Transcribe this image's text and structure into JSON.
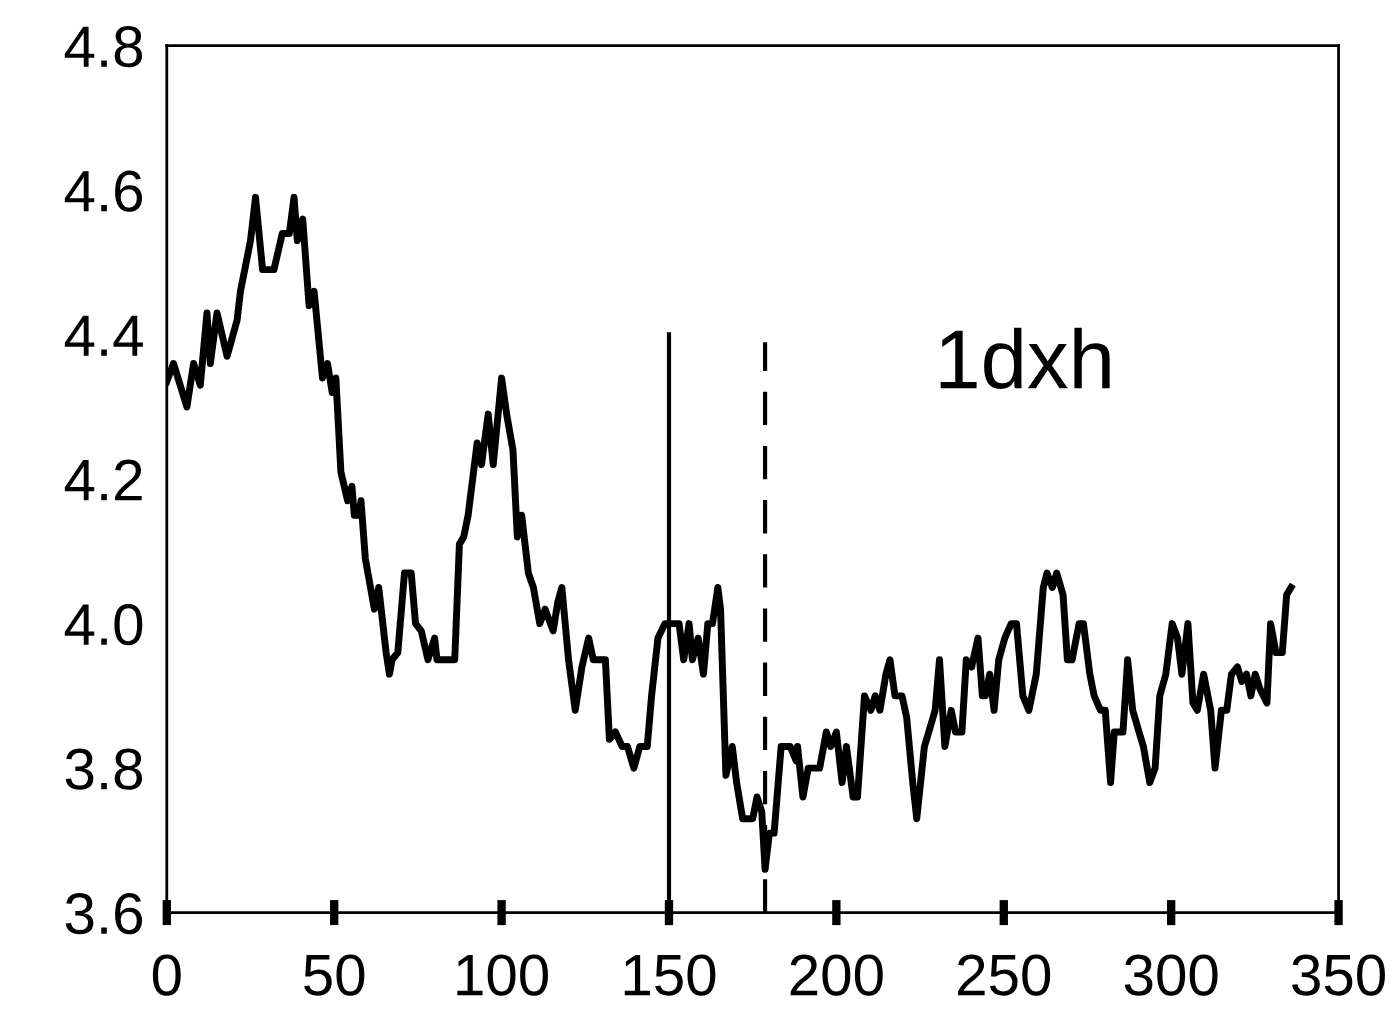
{
  "chart_data": {
    "type": "line",
    "annotations": [
      "1dxh"
    ],
    "x": [
      0,
      2,
      6,
      8,
      10,
      12,
      13,
      15,
      18,
      21,
      22,
      25,
      26.5,
      28.6,
      32,
      34.5,
      36.6,
      38,
      39,
      40.6,
      42.5,
      44,
      46.5,
      48,
      49.4,
      50.5,
      52,
      54,
      55.3,
      56,
      57.4,
      58,
      59.3,
      62,
      63.3,
      65.5,
      66.5,
      67.3,
      69,
      71,
      73,
      74.3,
      76,
      78,
      80,
      80.7,
      86,
      87.4,
      88.7,
      90,
      92.7,
      94,
      96,
      97.5,
      100,
      101.5,
      103.4,
      104.7,
      106,
      108,
      109.5,
      111.4,
      113,
      115.4,
      116.8,
      118,
      120,
      122,
      124,
      126,
      127.4,
      131,
      132.2,
      134,
      136,
      137.6,
      139.5,
      141.3,
      143.5,
      144.8,
      146.7,
      148.8,
      153,
      154.4,
      156,
      157,
      158.7,
      160.3,
      161.6,
      163,
      164.6,
      165.4,
      167,
      168.9,
      170.2,
      172,
      175,
      176.3,
      177.7,
      178.7,
      180,
      181.4,
      183.5,
      186.2,
      188,
      188.4,
      190,
      191.6,
      195,
      197,
      198.3,
      200,
      201.7,
      203,
      205,
      206.3,
      208.4,
      210.3,
      211.6,
      213,
      214.8,
      216,
      217.5,
      219.6,
      221,
      222.8,
      224,
      226.3,
      227.6,
      229.5,
      230.8,
      232.4,
      234.3,
      235.6,
      237.5,
      238.8,
      240.4,
      242.3,
      243.6,
      244.5,
      245.8,
      247.1,
      248.5,
      250.3,
      252.2,
      253.8,
      255.7,
      257.5,
      259.7,
      261.8,
      262.9,
      264.5,
      265.8,
      267.7,
      269,
      270.4,
      272.5,
      273.8,
      275.7,
      277,
      278.9,
      280.3,
      281.9,
      283,
      285.6,
      287,
      288.5,
      290.4,
      291.7,
      293.6,
      295.2,
      296.6,
      298.4,
      300.3,
      301.9,
      303.2,
      305,
      306.5,
      307.8,
      309.7,
      311.8,
      313.1,
      315,
      316.6,
      318,
      319.8,
      321.1,
      322.5,
      323.8,
      325.1,
      326.5,
      328.6,
      329.7,
      331.3,
      333.2,
      334.5,
      335.8
    ],
    "series": [
      {
        "color": "#000000",
        "values": [
          4.335,
          4.36,
          4.3,
          4.36,
          4.33,
          4.43,
          4.36,
          4.43,
          4.37,
          4.42,
          4.46,
          4.53,
          4.59,
          4.49,
          4.49,
          4.54,
          4.54,
          4.59,
          4.53,
          4.56,
          4.44,
          4.46,
          4.34,
          4.36,
          4.32,
          4.34,
          4.21,
          4.17,
          4.19,
          4.15,
          4.15,
          4.17,
          4.09,
          4.02,
          4.05,
          3.96,
          3.93,
          3.95,
          3.96,
          4.07,
          4.07,
          4.0,
          3.99,
          3.95,
          3.98,
          3.95,
          3.95,
          4.11,
          4.12,
          4.15,
          4.25,
          4.22,
          4.29,
          4.22,
          4.34,
          4.29,
          4.24,
          4.12,
          4.15,
          4.07,
          4.05,
          4.0,
          4.02,
          3.99,
          4.03,
          4.05,
          3.95,
          3.88,
          3.94,
          3.98,
          3.95,
          3.95,
          3.84,
          3.85,
          3.83,
          3.83,
          3.8,
          3.83,
          3.83,
          3.9,
          3.98,
          4.0,
          4.0,
          3.95,
          4.0,
          3.95,
          3.98,
          3.93,
          4.0,
          4.0,
          4.05,
          4.02,
          3.79,
          3.83,
          3.78,
          3.73,
          3.73,
          3.76,
          3.74,
          3.66,
          3.71,
          3.71,
          3.83,
          3.83,
          3.81,
          3.83,
          3.76,
          3.8,
          3.8,
          3.85,
          3.83,
          3.85,
          3.78,
          3.83,
          3.76,
          3.76,
          3.9,
          3.88,
          3.9,
          3.88,
          3.93,
          3.95,
          3.9,
          3.9,
          3.87,
          3.78,
          3.73,
          3.83,
          3.85,
          3.88,
          3.95,
          3.83,
          3.88,
          3.85,
          3.85,
          3.95,
          3.94,
          3.98,
          3.9,
          3.9,
          3.93,
          3.88,
          3.95,
          3.98,
          4.0,
          4.0,
          3.9,
          3.88,
          3.93,
          4.05,
          4.07,
          4.05,
          4.07,
          4.04,
          3.95,
          3.95,
          4.0,
          4.0,
          3.93,
          3.9,
          3.88,
          3.88,
          3.78,
          3.85,
          3.85,
          3.95,
          3.88,
          3.85,
          3.83,
          3.78,
          3.8,
          3.9,
          3.93,
          4.0,
          3.98,
          3.93,
          4.0,
          3.89,
          3.88,
          3.93,
          3.88,
          3.8,
          3.88,
          3.88,
          3.93,
          3.94,
          3.92,
          3.93,
          3.9,
          3.93,
          3.91,
          3.89,
          4.0,
          3.96,
          3.96,
          4.04,
          4.05
        ]
      }
    ],
    "ref_lines": [
      {
        "axis": "x",
        "value": 150,
        "color": "#000000",
        "line_style": "solid"
      },
      {
        "axis": "x",
        "value": 178.7,
        "color": "#000000",
        "line_style": "dashed"
      }
    ],
    "xlim": [
      0,
      350
    ],
    "xticks": [
      0,
      50,
      100,
      150,
      200,
      250,
      300,
      350
    ],
    "ylim": [
      3.6,
      4.8
    ],
    "yticks": [
      {
        "value": 3.6,
        "label": "3.6"
      },
      {
        "value": 3.8,
        "label": "3.8"
      },
      {
        "value": 4.0,
        "label": "4.0"
      },
      {
        "value": 4.2,
        "label": "4.2"
      },
      {
        "value": 4.4,
        "label": "4.4"
      },
      {
        "value": 4.6,
        "label": "4.6"
      },
      {
        "value": 4.8,
        "label": "4.8"
      }
    ],
    "grid": false,
    "legend": false,
    "marker": "none",
    "line_style": "solid"
  }
}
